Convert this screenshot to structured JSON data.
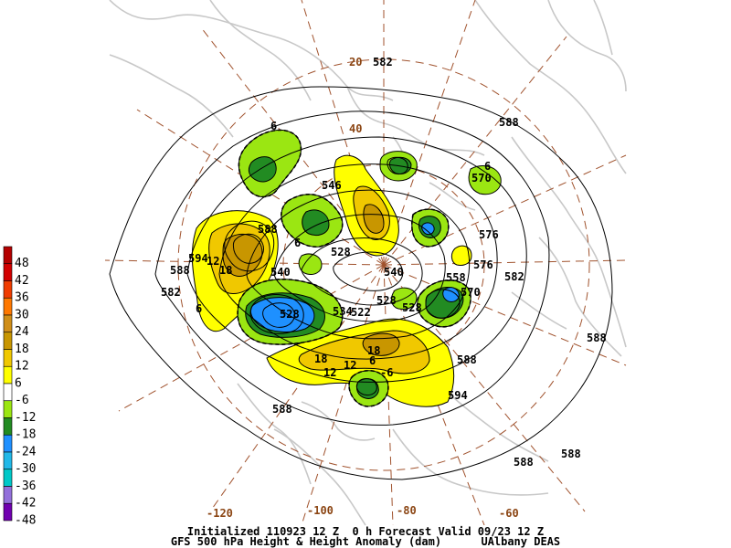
{
  "header": {
    "init_line": "Initialized 110923 12 Z  0 h Forecast Valid 09/23 12 Z",
    "product_line": "GFS 500 hPa Height & Height Anomaly (dam)",
    "source": "UAlbany DEAS"
  },
  "colorbar": {
    "labels": [
      "48",
      "42",
      "36",
      "30",
      "24",
      "18",
      "12",
      "6",
      "-6",
      "-12",
      "-18",
      "-24",
      "-30",
      "-36",
      "-42",
      "-48"
    ],
    "colors": [
      "#b40000",
      "#d20000",
      "#f03c00",
      "#ff7800",
      "#d08e18",
      "#c89600",
      "#f0c800",
      "#ffff00",
      "#ffffff",
      "#9be612",
      "#228b22",
      "#1e90ff",
      "#20b8e8",
      "#00c8c8",
      "#9370db",
      "#7000b0"
    ]
  },
  "latlon_labels": [
    {
      "text": "20"
    },
    {
      "text": "40"
    },
    {
      "text": "-120"
    },
    {
      "text": "-100"
    },
    {
      "text": "-80"
    },
    {
      "text": "-60"
    }
  ],
  "contour_labels": [
    {
      "text": "582"
    },
    {
      "text": "588"
    },
    {
      "text": "6"
    },
    {
      "text": "570"
    },
    {
      "text": "6"
    },
    {
      "text": "576"
    },
    {
      "text": "576"
    },
    {
      "text": "582"
    },
    {
      "text": "588"
    },
    {
      "text": "594"
    },
    {
      "text": "588"
    },
    {
      "text": "582"
    },
    {
      "text": "588"
    },
    {
      "text": "12"
    },
    {
      "text": "18"
    },
    {
      "text": "6"
    },
    {
      "text": "540"
    },
    {
      "text": "528"
    },
    {
      "text": "528"
    },
    {
      "text": "12"
    },
    {
      "text": "18"
    },
    {
      "text": "12"
    },
    {
      "text": "594"
    },
    {
      "text": "588"
    },
    {
      "text": "588"
    },
    {
      "text": "588"
    },
    {
      "text": "588"
    },
    {
      "text": "-6"
    },
    {
      "text": "528"
    },
    {
      "text": "534"
    },
    {
      "text": "528"
    },
    {
      "text": "522"
    },
    {
      "text": "546"
    },
    {
      "text": "540"
    },
    {
      "text": "570"
    },
    {
      "text": "558"
    },
    {
      "text": "6"
    },
    {
      "text": "6"
    },
    {
      "text": "18"
    }
  ],
  "colors": {
    "contour": "#000000",
    "latlon": "#a0522d",
    "coastline": "#c8c8c8"
  }
}
